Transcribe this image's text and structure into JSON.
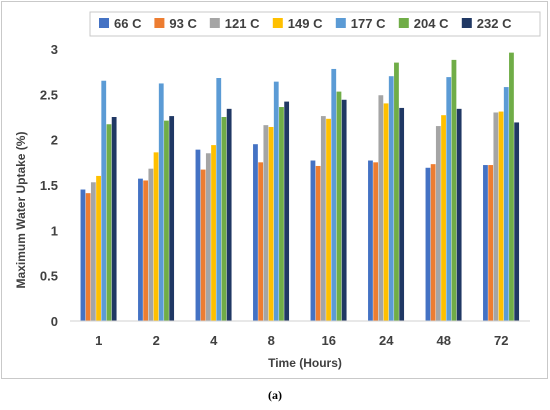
{
  "chart_data": {
    "type": "bar",
    "title": "",
    "xlabel": "Time (Hours)",
    "ylabel": "Maximum Water Uptake (%)",
    "ylim": [
      0,
      3
    ],
    "yticks": [
      "0",
      "0.5",
      "1",
      "1.5",
      "2",
      "2.5",
      "3"
    ],
    "grid": false,
    "legend_position": "top",
    "categories": [
      "1",
      "2",
      "4",
      "8",
      "16",
      "24",
      "48",
      "72"
    ],
    "series": [
      {
        "name": "66 C",
        "color": "#4472c4",
        "values": [
          1.45,
          1.57,
          1.89,
          1.95,
          1.77,
          1.77,
          1.69,
          1.72
        ]
      },
      {
        "name": "93 C",
        "color": "#ed7d31",
        "values": [
          1.41,
          1.55,
          1.67,
          1.75,
          1.71,
          1.75,
          1.73,
          1.72
        ]
      },
      {
        "name": "121 C",
        "color": "#a5a5a5",
        "values": [
          1.53,
          1.68,
          1.85,
          2.16,
          2.26,
          2.49,
          2.15,
          2.3
        ]
      },
      {
        "name": "149 C",
        "color": "#ffc000",
        "values": [
          1.6,
          1.86,
          1.94,
          2.14,
          2.23,
          2.4,
          2.27,
          2.31
        ]
      },
      {
        "name": "177 C",
        "color": "#5b9bd5",
        "values": [
          2.65,
          2.62,
          2.68,
          2.64,
          2.78,
          2.7,
          2.69,
          2.58
        ]
      },
      {
        "name": "204 C",
        "color": "#70ad47",
        "values": [
          2.17,
          2.21,
          2.25,
          2.36,
          2.53,
          2.85,
          2.88,
          2.96
        ]
      },
      {
        "name": "232 C",
        "color": "#203864",
        "values": [
          2.25,
          2.26,
          2.34,
          2.42,
          2.44,
          2.35,
          2.34,
          2.19
        ]
      }
    ]
  },
  "caption": "(a)"
}
